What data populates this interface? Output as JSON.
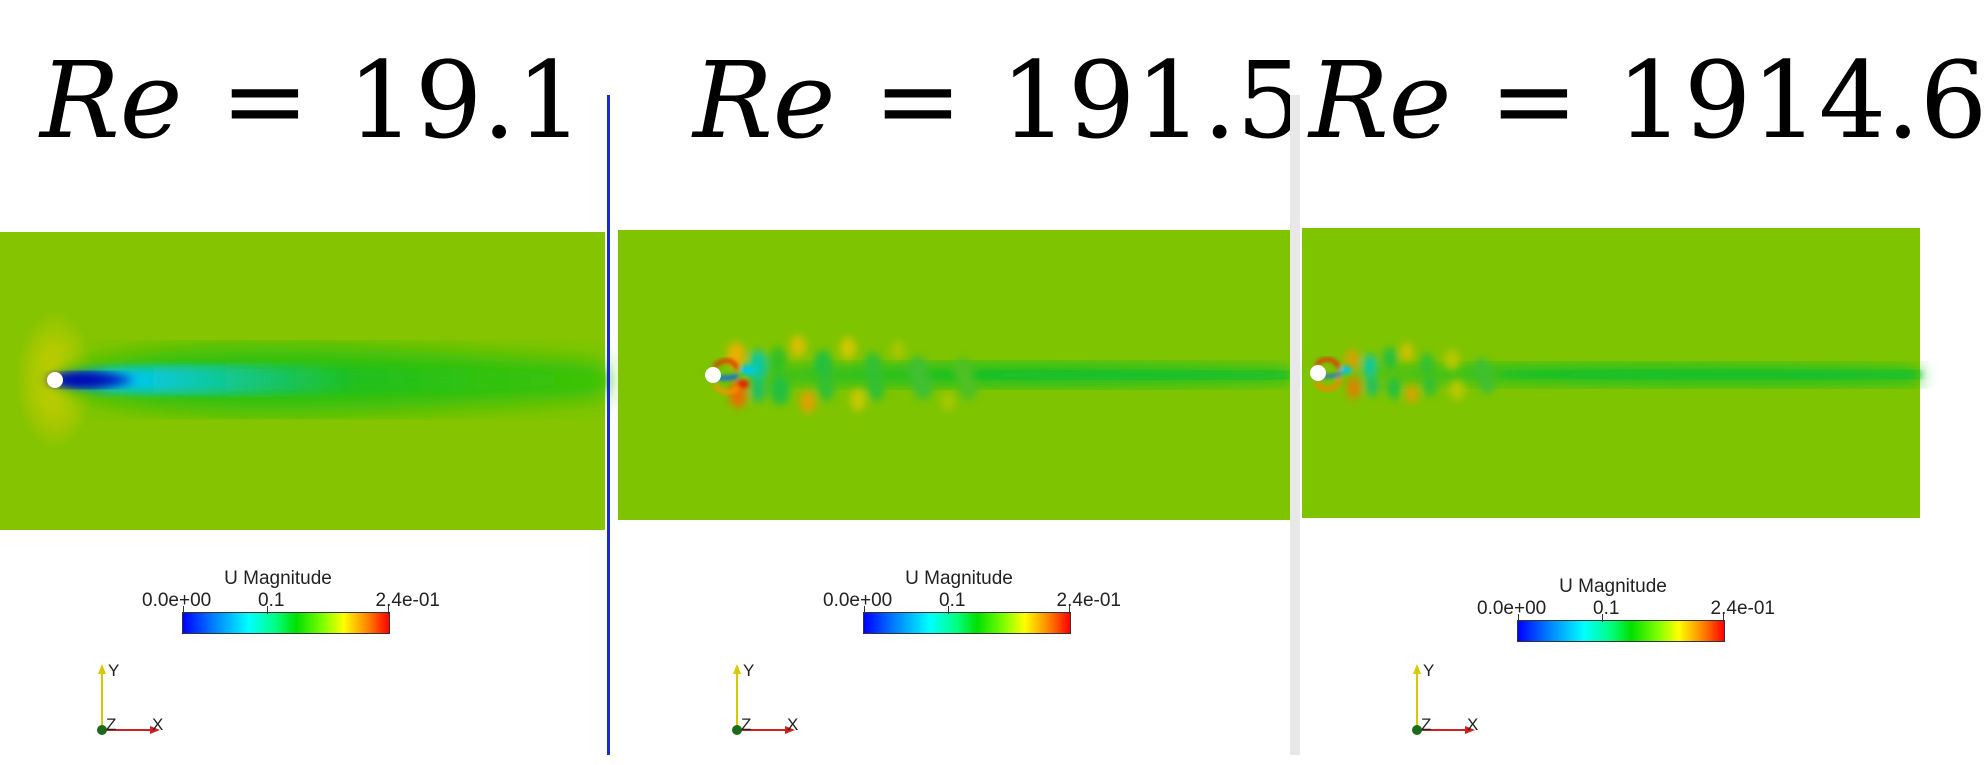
{
  "panels": [
    {
      "title": {
        "lhs": "Re",
        "eq": "=",
        "rhs": "19.1"
      },
      "colorbar": {
        "title": "U Magnitude",
        "min": "0.0e+00",
        "mid": "0.1",
        "max": "2.4e-01"
      },
      "axes": {
        "y": "Y",
        "z": "Z",
        "x": "X"
      }
    },
    {
      "title": {
        "lhs": "Re",
        "eq": "=",
        "rhs": "191.5"
      },
      "colorbar": {
        "title": "U Magnitude",
        "min": "0.0e+00",
        "mid": "0.1",
        "max": "2.4e-01"
      },
      "axes": {
        "y": "Y",
        "z": "Z",
        "x": "X"
      }
    },
    {
      "title": {
        "lhs": "Re",
        "eq": "=",
        "rhs": "1914.6"
      },
      "colorbar": {
        "title": "U Magnitude",
        "min": "0.0e+00",
        "mid": "0.1",
        "max": "2.4e-01"
      },
      "axes": {
        "y": "Y",
        "z": "Z",
        "x": "X"
      }
    }
  ],
  "colors": {
    "field_background": "#80c400",
    "wake": "#18c418",
    "divider_blue": "#1a2bd6",
    "divider_gray": "#e8e8e8"
  }
}
